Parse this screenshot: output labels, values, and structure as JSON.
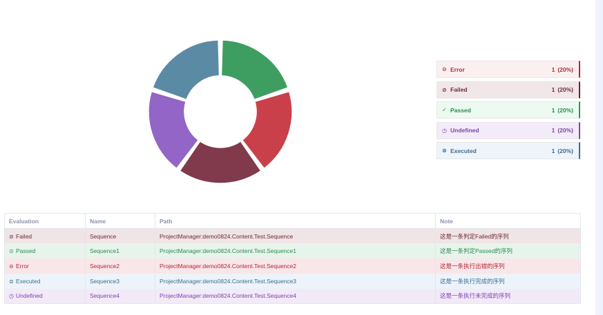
{
  "colors": {
    "error": "#c9404b",
    "failed": "#803a4b",
    "passed": "#3e9e62",
    "undefined": "#9265c6",
    "executed": "#5b8aa5"
  },
  "chart_data": {
    "type": "pie",
    "donut": true,
    "slices": [
      {
        "label": "Error",
        "value": 1,
        "percent": 20,
        "color": "#c9404b"
      },
      {
        "label": "Failed",
        "value": 1,
        "percent": 20,
        "color": "#803a4b"
      },
      {
        "label": "Undefined",
        "value": 1,
        "percent": 20,
        "color": "#9265c6"
      },
      {
        "label": "Executed",
        "value": 1,
        "percent": 20,
        "color": "#5b8aa5"
      },
      {
        "label": "Passed",
        "value": 1,
        "percent": 20,
        "color": "#3e9e62"
      }
    ]
  },
  "legend": [
    {
      "label": "Error",
      "count": "1",
      "percent": "(20%)",
      "icon": "error-circle-icon",
      "glyph": "⊝",
      "color": "#b22a36",
      "bg": "#fbf0f0",
      "border": "#b0252f"
    },
    {
      "label": "Failed",
      "count": "1",
      "percent": "(20%)",
      "icon": "failed-slash-icon",
      "glyph": "⊘",
      "color": "#6e2a3a",
      "bg": "#f1e6e8",
      "border": "#6e1f30"
    },
    {
      "label": "Passed",
      "count": "1",
      "percent": "(20%)",
      "icon": "passed-check-icon",
      "glyph": "✓",
      "color": "#2e8a4e",
      "bg": "#ecfaf1",
      "border": "#2f9455"
    },
    {
      "label": "Undefined",
      "count": "1",
      "percent": "(20%)",
      "icon": "undefined-clock-icon",
      "glyph": "◷",
      "color": "#7a43b0",
      "bg": "#f3ecf8",
      "border": "#7b46ad"
    },
    {
      "label": "Executed",
      "count": "1",
      "percent": "(20%)",
      "icon": "executed-play-icon",
      "glyph": "⊜",
      "color": "#3c6d8c",
      "bg": "#eef4fa",
      "border": "#3c6d8a"
    }
  ],
  "table": {
    "headers": {
      "evaluation": "Evaluation",
      "name": "Name",
      "path": "Path",
      "note": "Note"
    },
    "rows": [
      {
        "evaluation": "Failed",
        "name": "Sequence",
        "path": "ProjectManager:demo0824.Content.Test.Sequence",
        "note": "这是一条判定Failed的序列",
        "icon": "failed-slash-icon",
        "glyph": "⊘",
        "color": "#6e2a3a",
        "bg": "#efe4e6"
      },
      {
        "evaluation": "Passed",
        "name": "Sequence1",
        "path": "ProjectManager:demo0824.Content.Test.Sequence1",
        "note": "这是一条判定Passed的序列",
        "icon": "passed-check-icon",
        "glyph": "⊙",
        "color": "#2e8a4e",
        "bg": "#e7f4ec"
      },
      {
        "evaluation": "Error",
        "name": "Sequence2",
        "path": "ProjectManager:demo0824.Content.Test.Sequence2",
        "note": "这是一条执行出错的序列",
        "icon": "error-circle-icon",
        "glyph": "⊝",
        "color": "#b02a36",
        "bg": "#f9e6e8"
      },
      {
        "evaluation": "Executed",
        "name": "Sequence3",
        "path": "ProjectManager:demo0824.Content.Test.Sequence3",
        "note": "这是一条执行完成的序列",
        "icon": "executed-play-icon",
        "glyph": "⊜",
        "color": "#3c6d8c",
        "bg": "#edf3fa"
      },
      {
        "evaluation": "Undefined",
        "name": "Sequence4",
        "path": "ProjectManager:demo0824.Content.Test.Sequence4",
        "note": "这是一条执行未完成的序列",
        "icon": "undefined-clock-icon",
        "glyph": "◷",
        "color": "#7a43b0",
        "bg": "#f2eaf7"
      }
    ]
  }
}
